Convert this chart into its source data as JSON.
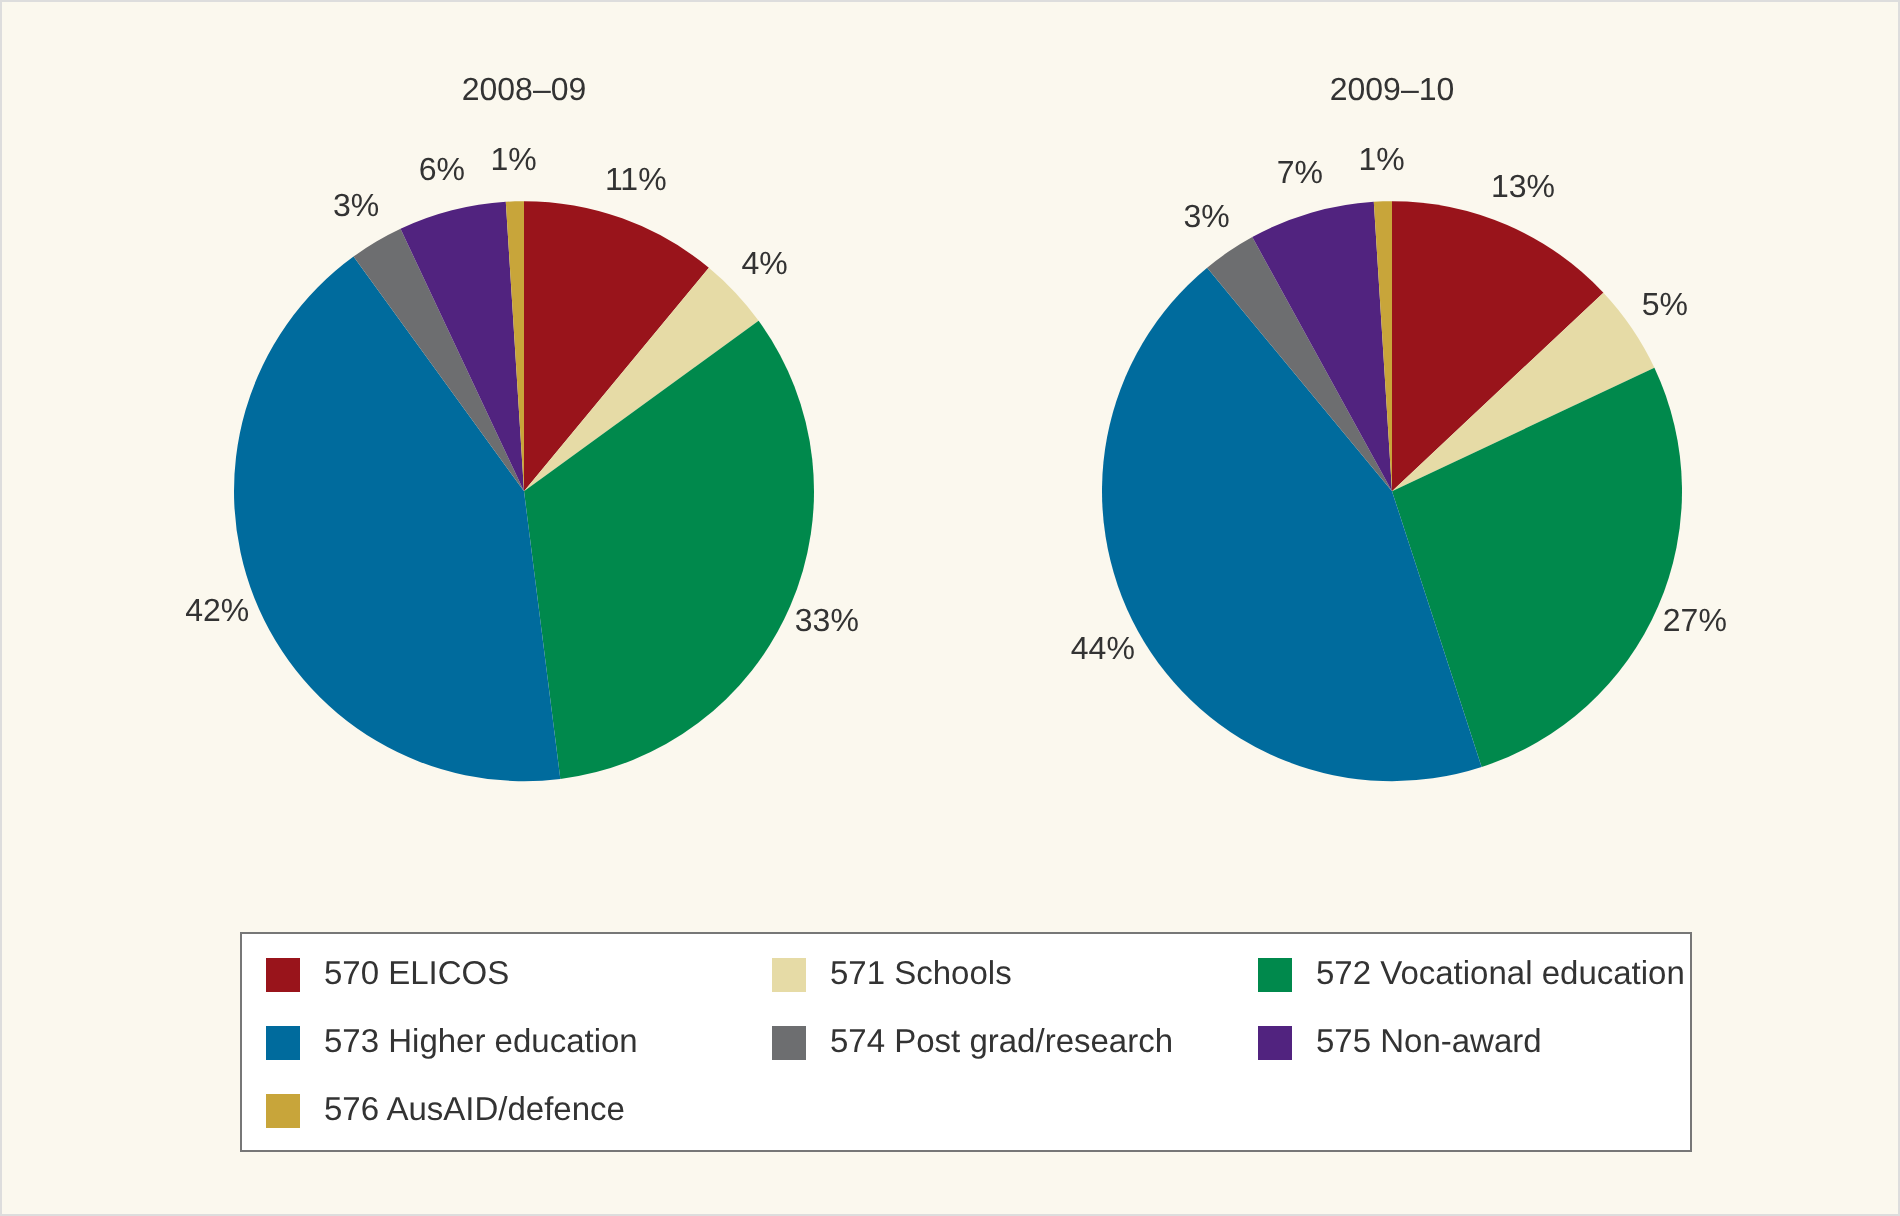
{
  "chart_data": [
    {
      "type": "pie",
      "title": "2008–09",
      "categories": [
        "570 ELICOS",
        "571 Schools",
        "572 Vocational education",
        "573 Higher education",
        "574 Post grad/research",
        "575 Non-award",
        "576 AusAID/defence"
      ],
      "values": [
        11,
        4,
        33,
        42,
        3,
        6,
        1
      ],
      "colors": [
        "#99141b",
        "#e6dba6",
        "#00894c",
        "#006b9d",
        "#6d6e70",
        "#51237f",
        "#c8a53a"
      ],
      "value_labels": [
        "11%",
        "4%",
        "33%",
        "42%",
        "3%",
        "6%",
        "1%"
      ],
      "legend": "bottom"
    },
    {
      "type": "pie",
      "title": "2009–10",
      "categories": [
        null,
        null,
        null,
        null,
        null,
        null,
        null
      ],
      "values": [
        13,
        5,
        27,
        44,
        3,
        7,
        1
      ],
      "colors": [
        "#99141b",
        "#e6dba6",
        "#00894c",
        "#006b9d",
        "#6d6e70",
        "#51237f",
        "#c8a53a"
      ],
      "value_labels": [
        "13%",
        "5%",
        "27%",
        "44%",
        "3%",
        "7%",
        "1%"
      ]
    }
  ]
}
